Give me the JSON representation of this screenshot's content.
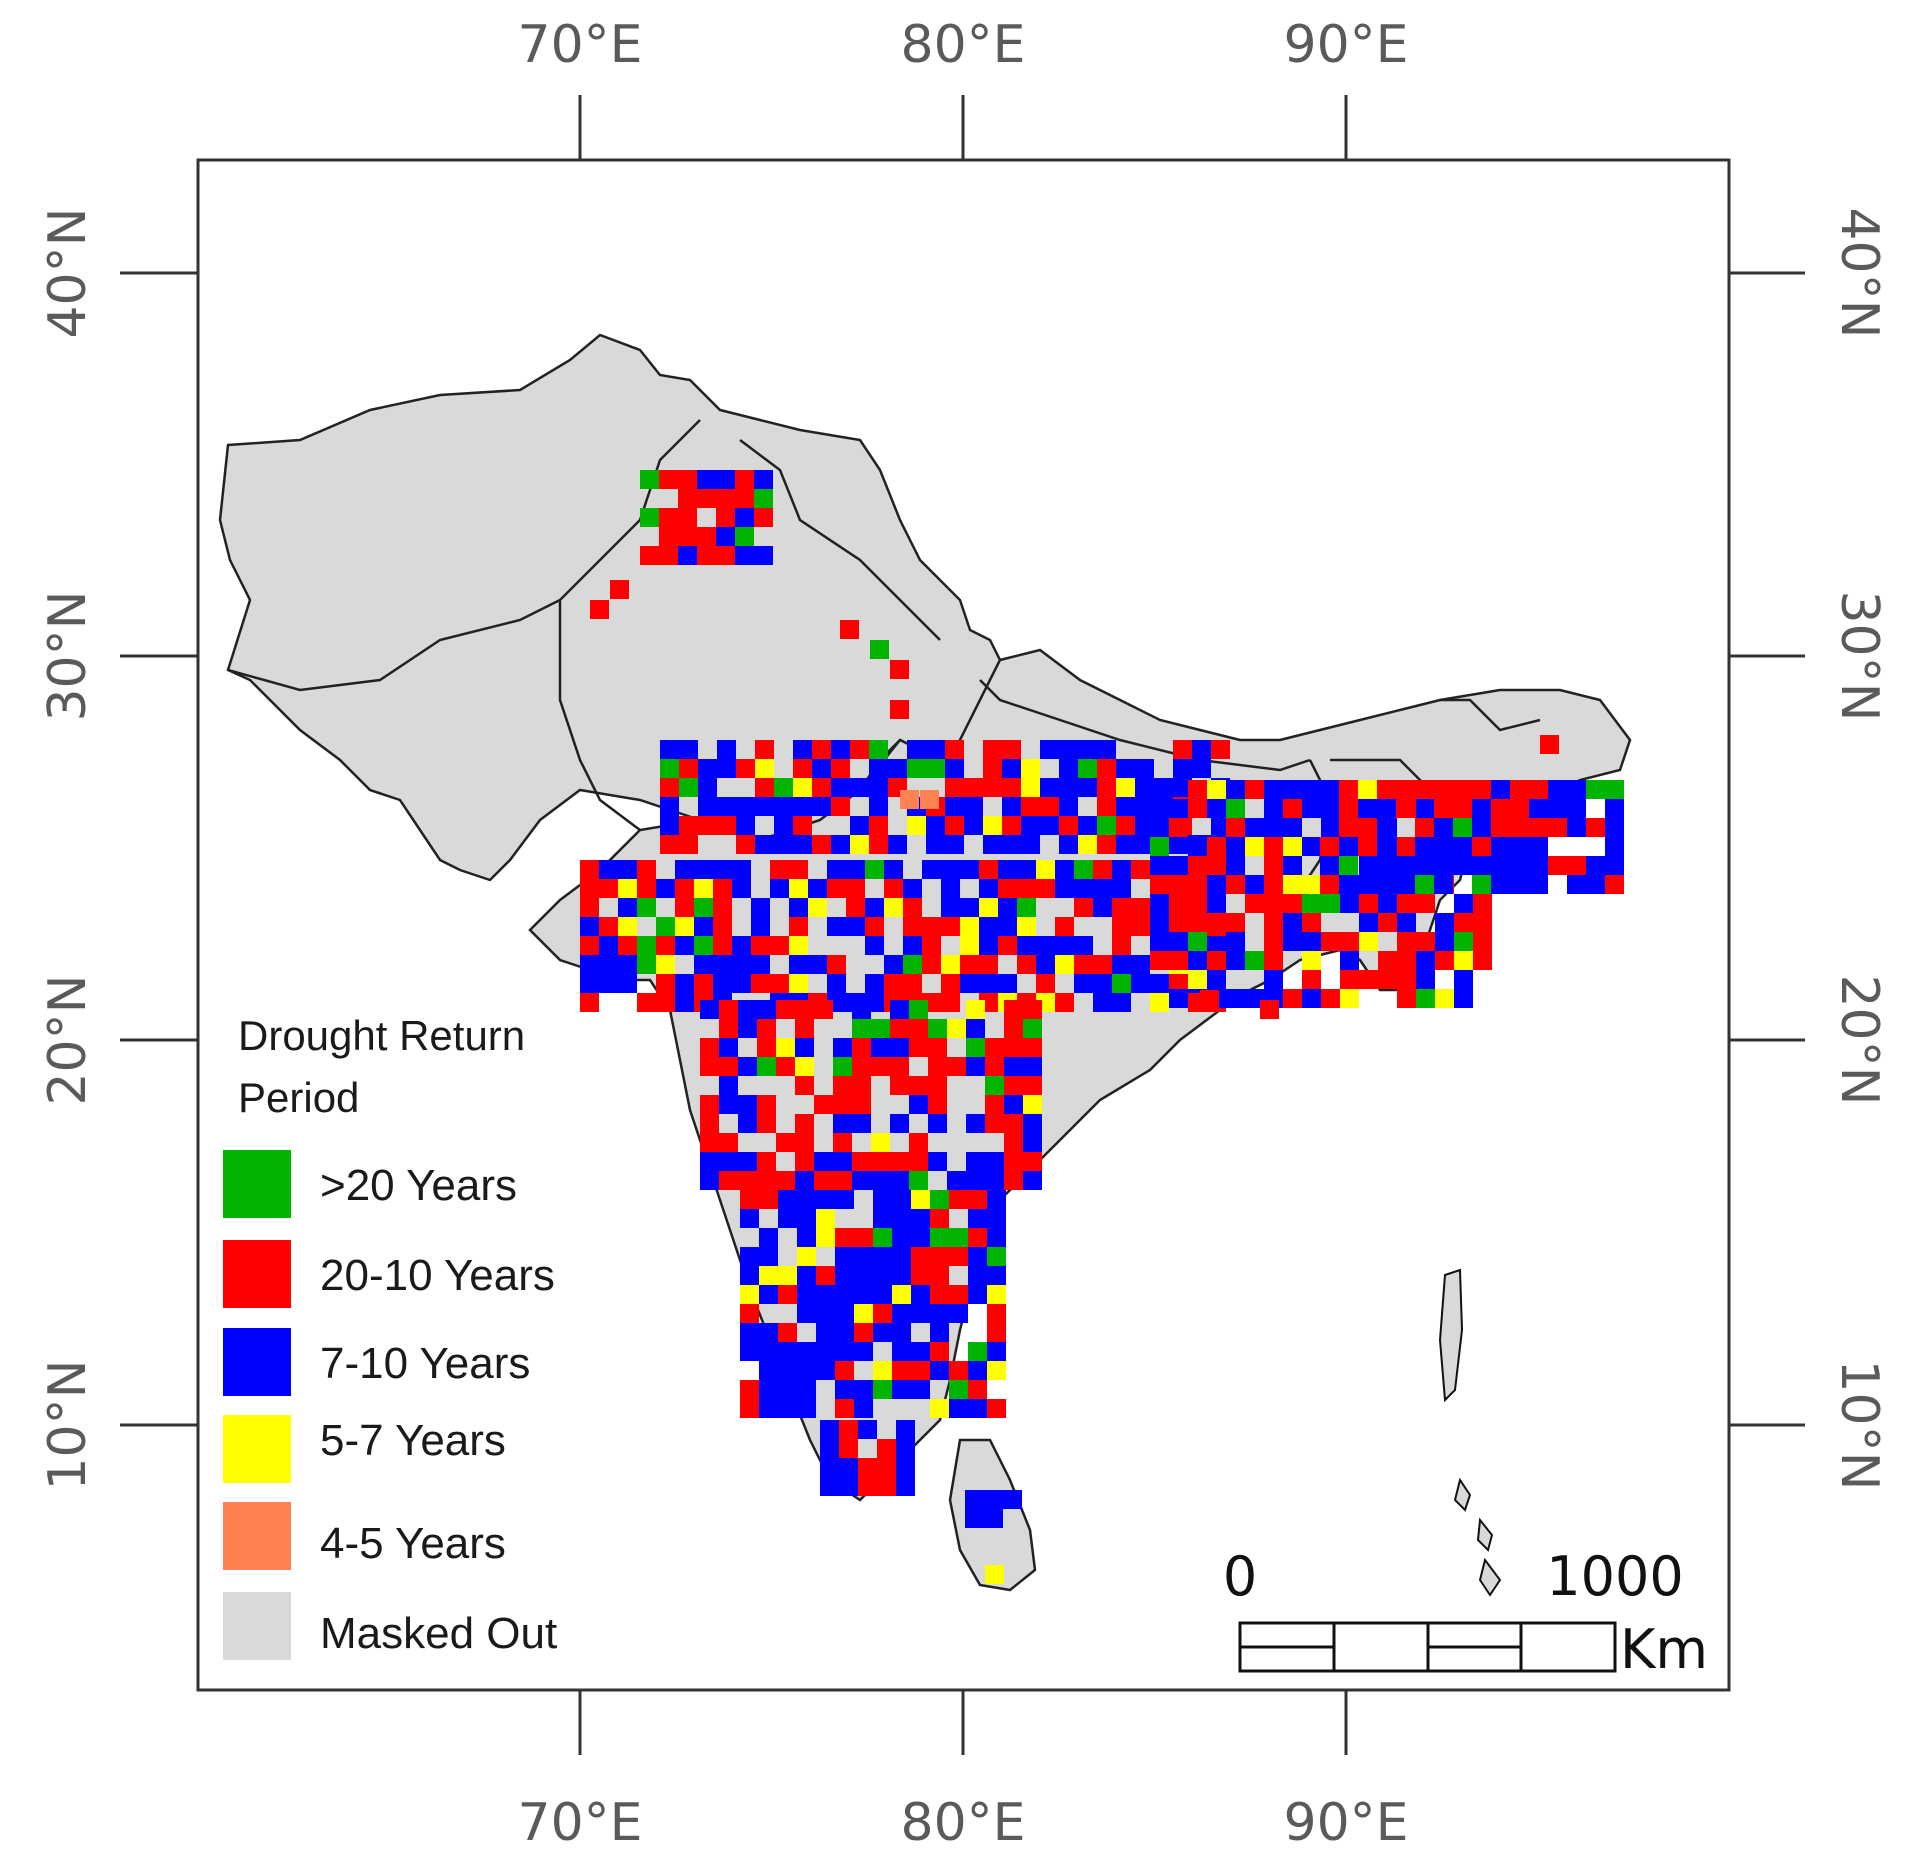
{
  "map": {
    "x_ticks": [
      "70°E",
      "80°E",
      "90°E"
    ],
    "y_ticks": [
      "10°N",
      "20°N",
      "30°N",
      "40°N"
    ],
    "x_range_deg": [
      60,
      100
    ],
    "y_range_deg": [
      3,
      43
    ],
    "x_tick_values": [
      70,
      80,
      90
    ],
    "y_tick_values": [
      10,
      20,
      30,
      40
    ]
  },
  "legend": {
    "title_line1": "Drought Return",
    "title_line2": "Period",
    "items": [
      {
        "label": ">20 Years",
        "color": "#00b400"
      },
      {
        "label": "20-10 Years",
        "color": "#ff0000"
      },
      {
        "label": "7-10 Years",
        "color": "#0000ff"
      },
      {
        "label": "5-7 Years",
        "color": "#ffff00"
      },
      {
        "label": "4-5 Years",
        "color": "#ff8050"
      },
      {
        "label": "Masked Out",
        "color": "#d9d9d9"
      }
    ]
  },
  "scale_bar": {
    "start_label": "0",
    "end_label": "1000",
    "unit": "Km"
  },
  "colors": {
    "green": "#00b400",
    "red": "#ff0000",
    "blue": "#0000ff",
    "yellow": "#ffff00",
    "orange": "#ff8050",
    "masked": "#d9d9d9",
    "border": "#222222"
  }
}
